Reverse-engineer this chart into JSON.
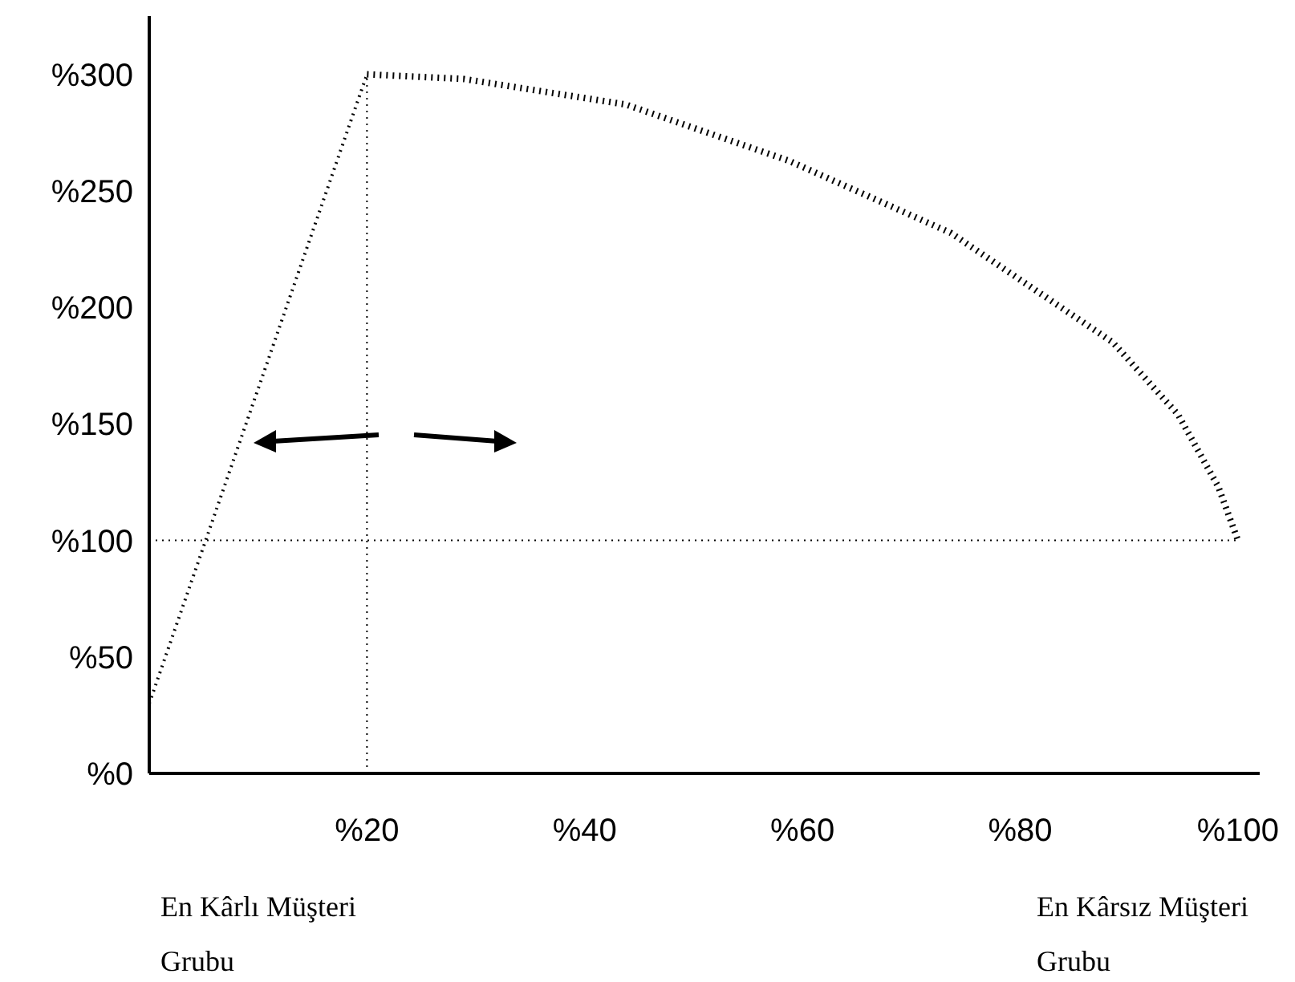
{
  "chart_data": {
    "type": "line",
    "xlim": [
      0,
      102
    ],
    "ylim": [
      0,
      325
    ],
    "xticks": [
      {
        "value": 20,
        "label": "%20"
      },
      {
        "value": 40,
        "label": "%40"
      },
      {
        "value": 60,
        "label": "%60"
      },
      {
        "value": 80,
        "label": "%80"
      },
      {
        "value": 100,
        "label": "%100"
      }
    ],
    "yticks": [
      {
        "value": 0,
        "label": "%0"
      },
      {
        "value": 50,
        "label": "%50"
      },
      {
        "value": 100,
        "label": "%100"
      },
      {
        "value": 150,
        "label": "%150"
      },
      {
        "value": 200,
        "label": "%200"
      },
      {
        "value": 250,
        "label": "%250"
      },
      {
        "value": 300,
        "label": "%300"
      }
    ],
    "series": [
      {
        "color": "#000000",
        "line_style": "dotted",
        "x": [
          0,
          20
        ],
        "values": [
          30,
          300
        ]
      },
      {
        "color": "#000000",
        "line_style": "dotted",
        "x": [
          20,
          28.9,
          43.8,
          58.7,
          73.6,
          88.5,
          94.5,
          98.2,
          100
        ],
        "values": [
          300,
          298,
          287,
          263,
          232,
          185,
          154,
          123,
          100
        ]
      }
    ],
    "ref_lines": [
      {
        "axis": "y",
        "value": 100,
        "line_style": "dotted",
        "color": "#000000"
      },
      {
        "axis": "x",
        "value": 20,
        "line_style": "dotted",
        "color": "#000000"
      }
    ],
    "annotations": [
      "En Kârlı Müşteri Grubu",
      "En Kârsız Müşteri Grubu"
    ],
    "grid": false
  }
}
